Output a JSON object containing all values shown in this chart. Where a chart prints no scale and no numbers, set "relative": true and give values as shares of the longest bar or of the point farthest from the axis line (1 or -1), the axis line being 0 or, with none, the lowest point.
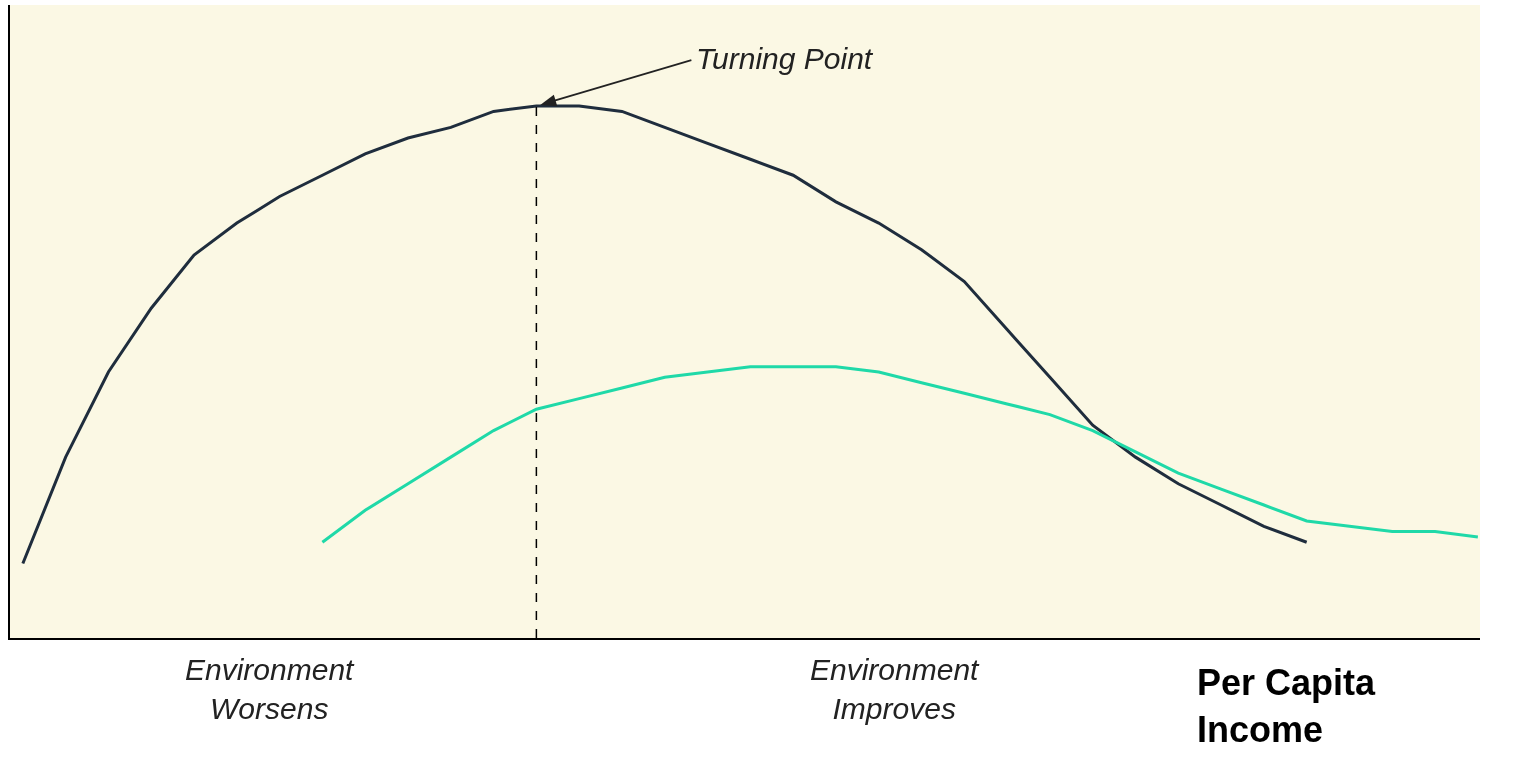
{
  "chart_data": {
    "type": "line",
    "relative": true,
    "xlabel": "Per Capita Income",
    "categories": [
      null,
      null,
      null,
      null,
      null,
      null,
      null,
      null,
      null,
      null,
      null,
      null,
      null,
      null,
      null,
      null,
      null,
      null,
      null,
      null,
      null,
      null,
      null,
      null,
      null,
      null,
      null,
      null,
      null,
      null,
      null,
      null,
      null,
      null,
      null
    ],
    "series": [
      {
        "color": "#1f2d3d",
        "values": [
          0.14,
          0.34,
          0.5,
          0.62,
          0.72,
          0.78,
          0.83,
          0.87,
          0.91,
          0.94,
          0.96,
          0.99,
          1.0,
          1.0,
          0.99,
          0.96,
          0.93,
          0.9,
          0.87,
          0.82,
          0.78,
          0.73,
          0.67,
          0.58,
          0.49,
          0.4,
          0.34,
          0.29,
          0.25,
          0.21,
          0.18,
          null,
          null,
          null,
          null
        ]
      },
      {
        "color": "#1fd9a8",
        "values": [
          null,
          null,
          null,
          null,
          null,
          null,
          null,
          0.18,
          0.24,
          0.29,
          0.34,
          0.39,
          0.43,
          0.45,
          0.47,
          0.49,
          0.5,
          0.51,
          0.51,
          0.51,
          0.5,
          0.48,
          0.46,
          0.44,
          0.42,
          0.39,
          0.35,
          0.31,
          0.28,
          0.25,
          0.22,
          0.21,
          0.2,
          0.2,
          0.19
        ]
      }
    ],
    "annotations": [
      "Turning Point",
      "Environment\nWorsens",
      "Environment\nImproves"
    ],
    "marker": "none",
    "line_style": "solid"
  }
}
